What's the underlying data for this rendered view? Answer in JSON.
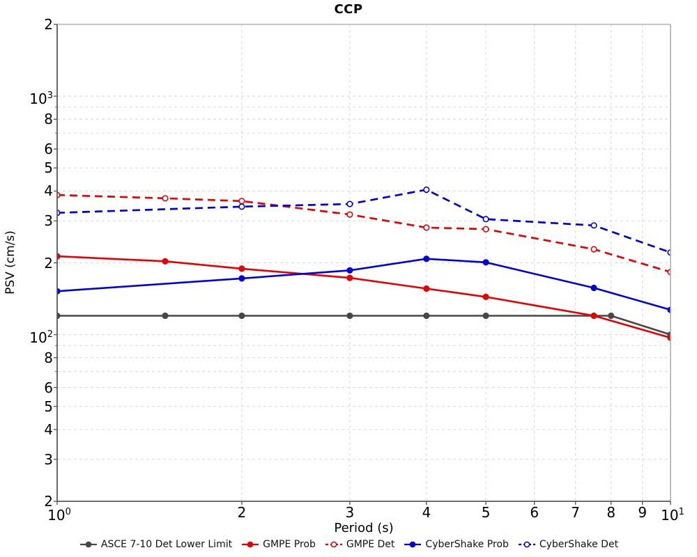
{
  "chart_data": {
    "type": "line",
    "title": "CCP",
    "xlabel": "Period (s)",
    "ylabel": "PSV (cm/s)",
    "x_scale": "log",
    "y_scale": "log",
    "xlim": [
      1,
      10
    ],
    "ylim": [
      20,
      2000
    ],
    "grid": {
      "x_values": [
        2,
        3,
        4,
        5,
        6,
        7,
        8,
        9
      ],
      "y_values": [
        30,
        40,
        50,
        60,
        70,
        80,
        90,
        100,
        200,
        300,
        400,
        500,
        600,
        700,
        800,
        900,
        1000
      ]
    },
    "x_ticks": [
      {
        "value": 1,
        "label": "10",
        "sup": "0"
      },
      {
        "value": 2,
        "label": "2"
      },
      {
        "value": 3,
        "label": "3"
      },
      {
        "value": 4,
        "label": "4"
      },
      {
        "value": 5,
        "label": "5"
      },
      {
        "value": 6,
        "label": "6"
      },
      {
        "value": 7,
        "label": "7"
      },
      {
        "value": 8,
        "label": "8"
      },
      {
        "value": 9,
        "label": "9"
      },
      {
        "value": 10,
        "label": "10",
        "sup": "1"
      }
    ],
    "y_ticks": [
      {
        "value": 2000,
        "label": "2"
      },
      {
        "value": 1000,
        "label": "10",
        "sup": "3"
      },
      {
        "value": 800,
        "label": "8"
      },
      {
        "value": 600,
        "label": "6"
      },
      {
        "value": 500,
        "label": "5"
      },
      {
        "value": 400,
        "label": "4"
      },
      {
        "value": 300,
        "label": "3"
      },
      {
        "value": 200,
        "label": "2"
      },
      {
        "value": 100,
        "label": "10",
        "sup": "2"
      },
      {
        "value": 80,
        "label": "8"
      },
      {
        "value": 60,
        "label": "6"
      },
      {
        "value": 50,
        "label": "5"
      },
      {
        "value": 40,
        "label": "4"
      },
      {
        "value": 30,
        "label": "3"
      },
      {
        "value": 20,
        "label": "2"
      }
    ],
    "series": [
      {
        "name": "ASCE 7-10 Det Lower Limit",
        "color": "#474747",
        "line": "solid",
        "marker": "filled",
        "x": [
          1,
          1.5,
          2,
          3,
          4,
          5,
          8,
          10
        ],
        "y": [
          120,
          120,
          120,
          120,
          120,
          120,
          120,
          100
        ]
      },
      {
        "name": "GMPE Prob",
        "color": "#e60000",
        "line": "solid",
        "marker": "filled",
        "x": [
          1,
          1.5,
          2,
          3,
          4,
          5,
          7.5,
          10
        ],
        "y": [
          213,
          203,
          189,
          173,
          156,
          144,
          120,
          97
        ]
      },
      {
        "name": "GMPE Det",
        "color": "#e60000",
        "line": "dashed",
        "marker": "open",
        "x": [
          1,
          1.5,
          2,
          3,
          4,
          5,
          7.5,
          10
        ],
        "y": [
          385,
          373,
          363,
          319,
          281,
          277,
          228,
          183
        ]
      },
      {
        "name": "CyberShake Prob",
        "color": "#0000dd",
        "line": "solid",
        "marker": "filled",
        "x": [
          1,
          2,
          3,
          4,
          5,
          7.5,
          10
        ],
        "y": [
          152,
          172,
          186,
          208,
          201,
          157,
          127
        ]
      },
      {
        "name": "CyberShake Det",
        "color": "#0000dd",
        "line": "dashed",
        "marker": "open",
        "x": [
          1,
          2,
          3,
          4,
          5,
          7.5,
          10
        ],
        "y": [
          324,
          344,
          353,
          405,
          305,
          287,
          221
        ]
      }
    ],
    "legend": {
      "position": "bottom"
    },
    "colors": {
      "grid": "#d8d8d8",
      "axis_dark": "#5a5a5a",
      "axis_light": "#a8a8a8",
      "text": "#000000"
    }
  }
}
